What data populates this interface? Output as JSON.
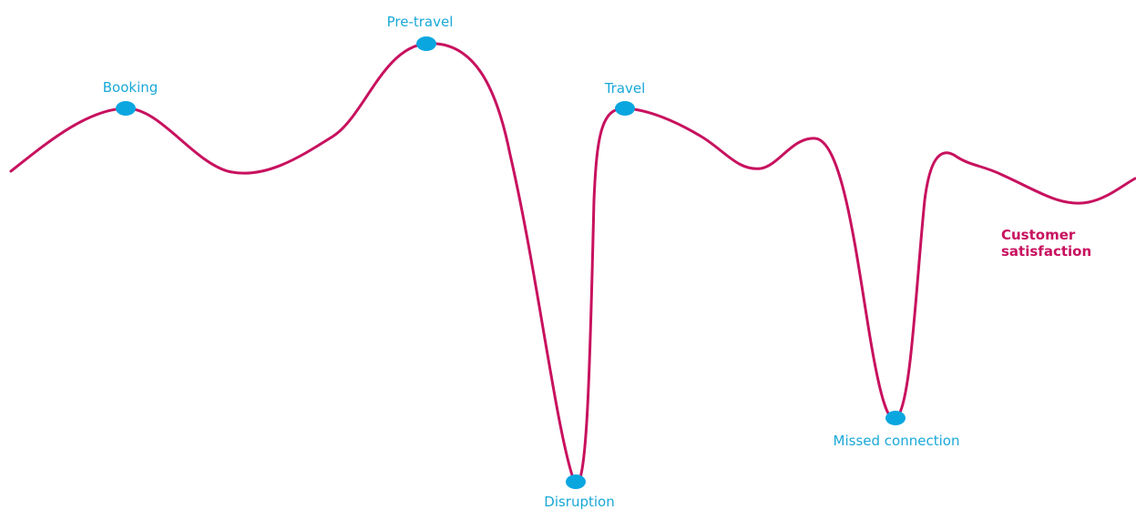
{
  "colors": {
    "curve": "#c8115f",
    "marker": "#0aa6e0",
    "stage_label": "#1aa8d8",
    "series_label": "#c8115f",
    "background": "#ffffff"
  },
  "curve_label": {
    "line1": "Customer",
    "line2": "satisfaction"
  },
  "stages": [
    {
      "id": "booking",
      "label": "Booking"
    },
    {
      "id": "pre-travel",
      "label": "Pre-travel"
    },
    {
      "id": "travel",
      "label": "Travel"
    },
    {
      "id": "disruption",
      "label": "Disruption"
    },
    {
      "id": "missed-connection",
      "label": "Missed connection"
    }
  ]
}
